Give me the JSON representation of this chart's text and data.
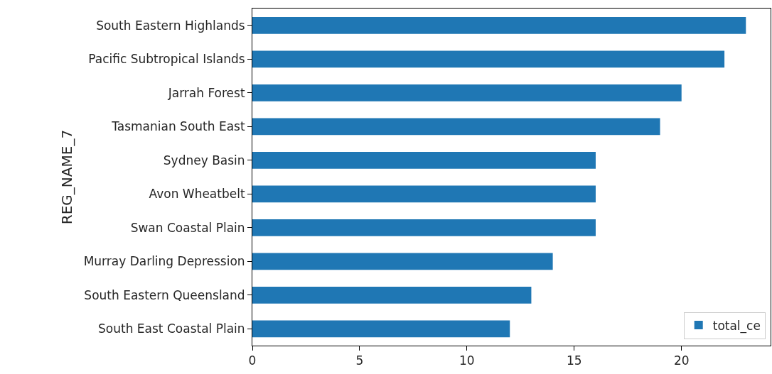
{
  "chart_data": {
    "type": "bar",
    "orientation": "horizontal",
    "ylabel": "REG_NAME_7",
    "categories": [
      "South Eastern Highlands",
      "Pacific Subtropical Islands",
      "Jarrah Forest",
      "Tasmanian South East",
      "Sydney Basin",
      "Avon Wheatbelt",
      "Swan Coastal Plain",
      "Murray Darling Depression",
      "South Eastern Queensland",
      "South East Coastal Plain"
    ],
    "series": [
      {
        "name": "total_ce",
        "color": "#1f77b4",
        "values": [
          23,
          22,
          20,
          19,
          16,
          16,
          16,
          14,
          13,
          12
        ]
      }
    ],
    "xlim": [
      0,
      24.15
    ],
    "xticks": [
      0,
      5,
      10,
      15,
      20
    ],
    "grid": false,
    "legend": "bottom right"
  }
}
